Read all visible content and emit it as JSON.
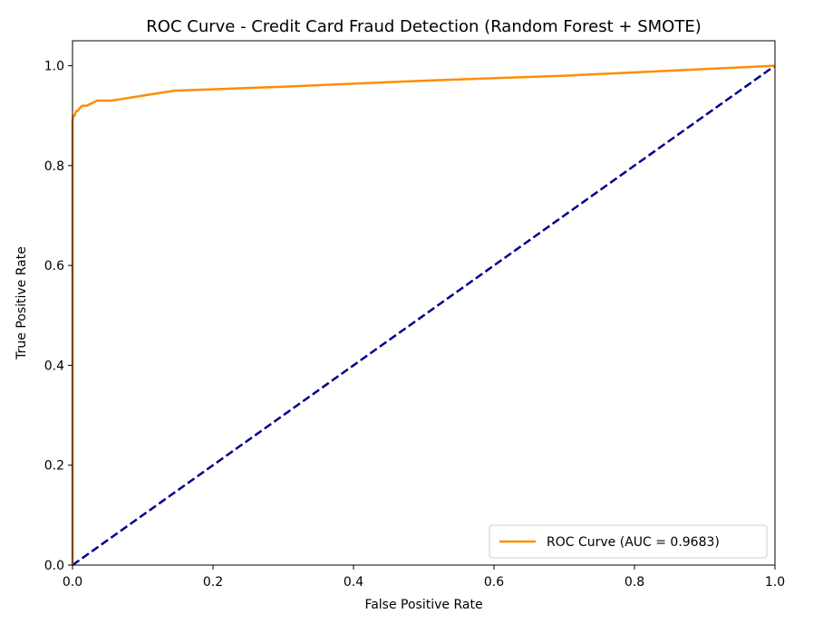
{
  "chart_data": {
    "type": "line",
    "title": "ROC Curve - Credit Card Fraud Detection (Random Forest + SMOTE)",
    "xlabel": "False Positive Rate",
    "ylabel": "True Positive Rate",
    "xlim": [
      0.0,
      1.0
    ],
    "ylim": [
      0.0,
      1.05
    ],
    "xticks": [
      0.0,
      0.2,
      0.4,
      0.6,
      0.8,
      1.0
    ],
    "yticks": [
      0.0,
      0.2,
      0.4,
      0.6,
      0.8,
      1.0
    ],
    "xtick_labels": [
      "0.0",
      "0.2",
      "0.4",
      "0.6",
      "0.8",
      "1.0"
    ],
    "ytick_labels": [
      "0.0",
      "0.2",
      "0.4",
      "0.6",
      "0.8",
      "1.0"
    ],
    "grid": false,
    "legend_position": "lower-right",
    "series": [
      {
        "name": "ROC Curve (AUC = 0.9683)",
        "color": "#ff8c00",
        "style": "solid",
        "x": [
          0.0,
          0.0,
          0.0,
          0.001,
          0.002,
          0.003,
          0.004,
          0.006,
          0.008,
          0.01,
          0.014,
          0.02,
          0.028,
          0.035,
          0.055,
          0.1,
          0.145,
          0.3,
          0.5,
          0.7,
          0.85,
          1.0
        ],
        "y": [
          0.0,
          0.5,
          0.89,
          0.9,
          0.9,
          0.9,
          0.905,
          0.91,
          0.91,
          0.915,
          0.92,
          0.92,
          0.925,
          0.93,
          0.93,
          0.94,
          0.95,
          0.958,
          0.97,
          0.98,
          0.99,
          1.0
        ]
      },
      {
        "name": "",
        "color": "#00008b",
        "style": "dashed",
        "x": [
          0.0,
          1.0
        ],
        "y": [
          0.0,
          1.0
        ]
      }
    ]
  }
}
